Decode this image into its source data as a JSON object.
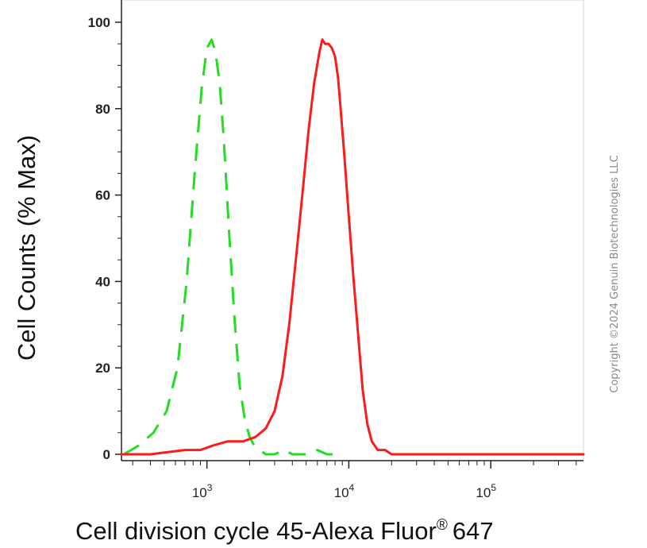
{
  "copyright": "Copyright ©2024 Genuin Biotechnologies LLC",
  "chart_data": {
    "type": "line",
    "xlabel": "Cell division cycle 45-Alexa Fluor",
    "xlabel_sup": "®",
    "xlabel_suffix": "647",
    "ylabel": "Cell Counts (% Max)",
    "x_scale": "log",
    "xlim": [
      250,
      450000
    ],
    "ylim": [
      0,
      100
    ],
    "y_ticks": [
      0,
      20,
      40,
      60,
      80,
      100
    ],
    "x_ticks": [
      {
        "base": "10",
        "exp": "3",
        "value": 1000
      },
      {
        "base": "10",
        "exp": "4",
        "value": 10000
      },
      {
        "base": "10",
        "exp": "5",
        "value": 100000
      }
    ],
    "grid": false,
    "series": [
      {
        "color": "#22dd22",
        "style": "dashed",
        "x": [
          260,
          330,
          420,
          520,
          620,
          720,
          820,
          920,
          1000,
          1080,
          1150,
          1230,
          1320,
          1430,
          1560,
          1700,
          1850,
          2000,
          2150,
          2350,
          2600,
          3000,
          3500,
          4000,
          5000,
          6000,
          7000,
          8000,
          9000
        ],
        "y": [
          0,
          2,
          5,
          10,
          20,
          40,
          65,
          85,
          94,
          96,
          93,
          86,
          72,
          52,
          32,
          16,
          8,
          4,
          2,
          1,
          0,
          0,
          1,
          0,
          0,
          1,
          0,
          0,
          0
        ]
      },
      {
        "color": "#ff1a1a",
        "style": "solid",
        "x": [
          250,
          400,
          700,
          900,
          1100,
          1400,
          1800,
          2200,
          2600,
          3000,
          3400,
          3800,
          4200,
          4700,
          5200,
          5700,
          6200,
          6500,
          6800,
          7200,
          7600,
          8000,
          8400,
          8800,
          9300,
          9900,
          10700,
          11600,
          12500,
          13500,
          14500,
          16000,
          18000,
          20000,
          25000,
          40000,
          100000,
          200000,
          450000
        ],
        "y": [
          0,
          0,
          1,
          1,
          2,
          3,
          3,
          4,
          6,
          10,
          18,
          30,
          44,
          60,
          75,
          86,
          93,
          96,
          95,
          95,
          94,
          92,
          87,
          79,
          69,
          57,
          42,
          28,
          15,
          7,
          3,
          1,
          1,
          0,
          0,
          0,
          0,
          0,
          0
        ]
      }
    ]
  }
}
